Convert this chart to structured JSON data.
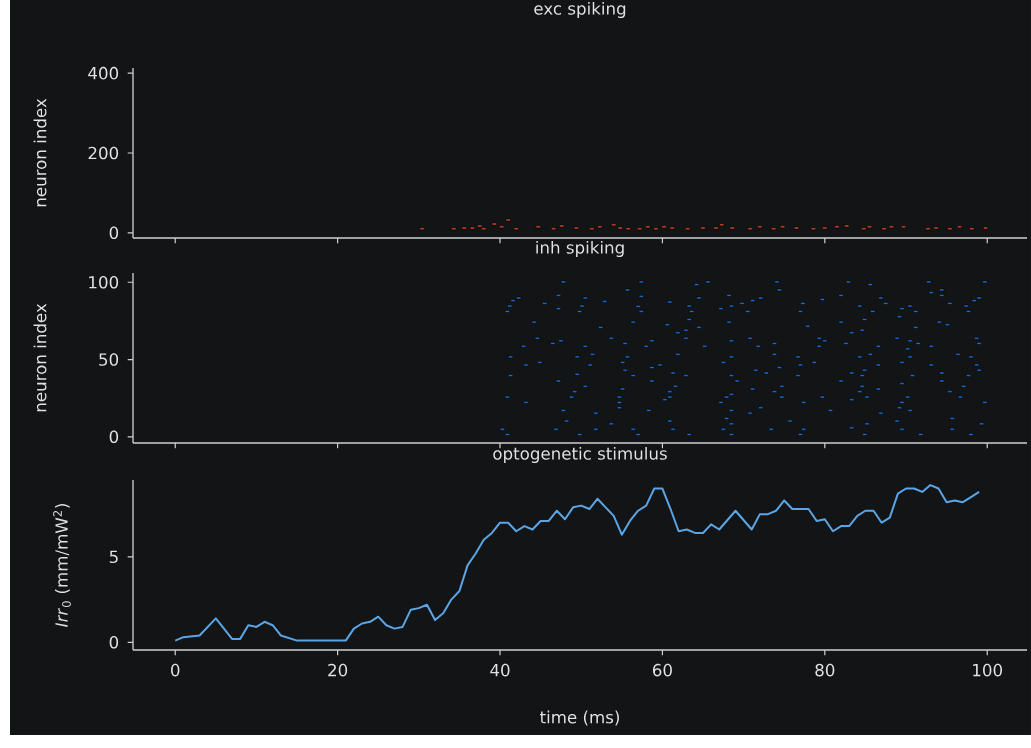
{
  "chart_data": [
    {
      "type": "scatter",
      "title": "exc spiking",
      "ylabel": "neuron index",
      "color": "#d9472b",
      "xlim": [
        -5.2,
        104.9
      ],
      "xticks": [
        0,
        20,
        40,
        60,
        80,
        100
      ],
      "ylim": [
        -13,
        413
      ],
      "yticks": [
        0,
        200,
        400
      ],
      "tick_labels": "y",
      "x": [
        30.4,
        34.3,
        35.6,
        36.6,
        37.5,
        38.0,
        39.3,
        40.2,
        41.0,
        42.0,
        44.7,
        46.6,
        47.6,
        49.4,
        51.3,
        52.3,
        54.0,
        54.8,
        55.8,
        57.2,
        58.2,
        59.2,
        60.2,
        61.2,
        63.1,
        65.0,
        66.6,
        67.3,
        68.6,
        70.8,
        72.0,
        73.7,
        74.8,
        76.5,
        78.6,
        80.0,
        81.5,
        82.7,
        84.8,
        85.5,
        87.3,
        88.2,
        89.7,
        92.7,
        93.7,
        95.4,
        96.6,
        98.1,
        99.8
      ],
      "values": [
        10,
        10,
        12,
        12,
        17,
        10,
        22,
        15,
        32,
        10,
        15,
        10,
        17,
        12,
        10,
        15,
        20,
        12,
        10,
        10,
        15,
        10,
        15,
        12,
        10,
        12,
        12,
        20,
        12,
        10,
        15,
        10,
        15,
        12,
        10,
        12,
        15,
        17,
        10,
        15,
        10,
        15,
        15,
        10,
        12,
        10,
        15,
        10,
        12
      ]
    },
    {
      "type": "scatter",
      "title": "inh spiking",
      "ylabel": "neuron index",
      "color": "#1f6fd6",
      "xlim": [
        -5.2,
        104.9
      ],
      "xticks": [
        0,
        20,
        40,
        60,
        80,
        100
      ],
      "ylim": [
        -4,
        106
      ],
      "yticks": [
        0,
        50,
        100
      ],
      "tick_labels": "y",
      "x": [
        47.8,
        57.4,
        65.6,
        64.2,
        55.7,
        47.2,
        57.4,
        68.2,
        42.3,
        50.5,
        64.5,
        41.6,
        45.5,
        52.9,
        60.9,
        41.2,
        50.1,
        47.2,
        57.0,
        63.3,
        68.5,
        67.2,
        40.9,
        49.8,
        57.4,
        63.6,
        44.2,
        56.4,
        63.3,
        68.2,
        52.4,
        60.6,
        64.5,
        62.9,
        61.9,
        44.6,
        53.7,
        62.9,
        47.5,
        58.7,
        68.5,
        46.5,
        55.4,
        42.9,
        50.5,
        58.0,
        65.2,
        51.4,
        41.3,
        49.5,
        55.7,
        61.9,
        68.5,
        44.9,
        55.1,
        43.2,
        51.1,
        59.7,
        67.5,
        58.7,
        55.4,
        41.3,
        49.5,
        56.4,
        61.3,
        62.9,
        68.5,
        47.2,
        58.7,
        69.2,
        50.5,
        55.1,
        61.6,
        49.2,
        60.9,
        40.9,
        48.8,
        54.7,
        60.9,
        67.9,
        43.2,
        54.7,
        60.3,
        67.2,
        68.5,
        54.7,
        47.8,
        58.3,
        68.5,
        51.8,
        48.2,
        60.9,
        67.9,
        53.7,
        68.5,
        40.3,
        46.9,
        51.8,
        56.4,
        61.3,
        67.5,
        40.9,
        49.8,
        57.0,
        63.3,
        68.5,
        74.1,
        82.9,
        92.8,
        99.7,
        85.6,
        74.4,
        93.1,
        94.4,
        82.0,
        94.4,
        71.1,
        72.1,
        79.7,
        86.9,
        98.4,
        99.0,
        69.8,
        77.3,
        87.5,
        95.4,
        84.3,
        89.5,
        90.5,
        97.4,
        70.5,
        77.0,
        85.9,
        91.2,
        97.7,
        89.2,
        84.9,
        82.0,
        94.1,
        95.1,
        77.9,
        91.2,
        84.6,
        83.3,
        70.8,
        79.3,
        88.9,
        98.7,
        80.0,
        90.5,
        73.8,
        82.6,
        91.5,
        71.8,
        79.3,
        86.6,
        93.1,
        99.0,
        90.2,
        73.8,
        85.6,
        96.4,
        76.7,
        84.3,
        90.5,
        98.0,
        78.7,
        89.5,
        77.0,
        86.6,
        93.1,
        98.7,
        71.5,
        74.4,
        84.9,
        99.0,
        72.8,
        83.3,
        94.4,
        76.7,
        84.6,
        90.8,
        97.7,
        82.0,
        94.4,
        89.5,
        74.7,
        84.6,
        97.1,
        71.1,
        86.6,
        73.8,
        84.3,
        95.4,
        74.7,
        79.7,
        85.2,
        90.2,
        96.7,
        77.4,
        83.3,
        89.5,
        99.7,
        72.1,
        89.2,
        80.7,
        90.5,
        70.8,
        86.9,
        75.7,
        88.9,
        95.7,
        85.2,
        99.3,
        73.4,
        77.4,
        83.3,
        89.5,
        95.7,
        77.0,
        84.9,
        91.8,
        98.0
      ],
      "values": [
        100.2,
        100.2,
        100.2,
        98.5,
        95.0,
        91.5,
        90.9,
        91.5,
        89.8,
        89.8,
        89.8,
        88.1,
        86.3,
        87.6,
        87.2,
        84.6,
        84.6,
        82.9,
        84.4,
        84.6,
        84.6,
        82.9,
        81.1,
        81.1,
        81.1,
        81.1,
        74.2,
        74.2,
        75.9,
        74.2,
        70.8,
        72.5,
        70.8,
        69.0,
        67.3,
        63.8,
        63.8,
        63.8,
        62.1,
        62.1,
        62.1,
        60.4,
        60.4,
        58.6,
        58.6,
        58.6,
        58.6,
        53.4,
        51.7,
        51.7,
        51.7,
        53.4,
        51.7,
        48.2,
        48.2,
        46.5,
        46.5,
        46.5,
        48.2,
        44.8,
        43.1,
        39.6,
        40.5,
        39.6,
        41.3,
        39.6,
        39.6,
        36.1,
        36.1,
        36.1,
        32.7,
        30.9,
        32.7,
        29.2,
        29.2,
        25.7,
        25.7,
        25.7,
        25.7,
        25.7,
        22.3,
        22.3,
        24.0,
        22.3,
        27.5,
        18.8,
        17.1,
        17.1,
        17.1,
        15.3,
        10.2,
        10.2,
        11.9,
        8.4,
        8.4,
        4.9,
        4.9,
        4.9,
        4.9,
        4.9,
        4.9,
        1.5,
        1.5,
        1.5,
        1.5,
        1.5,
        100.2,
        100.2,
        100.2,
        100.2,
        98.5,
        95.0,
        93.3,
        95.0,
        91.5,
        91.5,
        88.1,
        89.8,
        88.9,
        89.8,
        88.1,
        89.8,
        86.3,
        86.3,
        86.3,
        86.3,
        84.6,
        82.9,
        84.6,
        84.6,
        81.1,
        81.1,
        81.1,
        81.1,
        81.1,
        77.7,
        75.9,
        74.2,
        74.2,
        72.5,
        71.6,
        70.8,
        69.0,
        67.3,
        63.8,
        63.8,
        63.8,
        63.8,
        62.1,
        62.1,
        60.4,
        60.4,
        60.4,
        58.6,
        58.6,
        58.6,
        58.6,
        60.4,
        56.9,
        53.4,
        53.4,
        53.4,
        51.7,
        51.7,
        51.7,
        51.7,
        48.2,
        48.2,
        46.5,
        46.5,
        46.5,
        46.5,
        43.1,
        44.8,
        43.1,
        43.1,
        41.3,
        41.3,
        41.3,
        39.6,
        39.6,
        39.6,
        39.6,
        36.1,
        36.1,
        34.4,
        32.7,
        32.7,
        32.7,
        30.9,
        30.9,
        29.2,
        29.2,
        29.2,
        25.7,
        25.7,
        25.7,
        25.7,
        25.7,
        22.3,
        24.0,
        22.3,
        22.3,
        18.8,
        18.8,
        17.1,
        17.1,
        15.3,
        15.3,
        10.2,
        10.2,
        11.9,
        8.4,
        8.4,
        4.9,
        4.9,
        5.8,
        4.9,
        4.9,
        1.5,
        1.5,
        1.5,
        1.5
      ]
    },
    {
      "type": "line",
      "title": "optogenetic stimulus",
      "xlabel": "time (ms)",
      "ylabel": "*Irr*$_{0}$ (mm/mW$^{2}$)",
      "color": "#5aa5e6",
      "xlim": [
        -5.2,
        104.9
      ],
      "xticks": [
        0,
        20,
        40,
        60,
        80,
        100
      ],
      "ylim": [
        -0.45,
        9.5
      ],
      "yticks": [
        0,
        5
      ],
      "x": [
        0,
        1,
        3,
        5,
        6,
        7,
        8,
        9,
        10,
        11,
        12,
        13,
        15,
        21,
        22,
        23,
        24,
        25,
        26,
        27,
        28,
        29,
        30,
        31,
        32,
        33,
        34,
        35,
        36,
        37,
        38,
        39,
        40,
        41,
        42,
        43,
        44,
        45,
        46,
        47,
        48,
        49,
        50,
        51,
        52,
        53,
        54,
        55,
        56,
        57,
        58,
        59,
        60,
        61,
        62,
        63,
        64,
        65,
        66,
        67,
        69,
        71,
        72,
        73,
        74,
        75,
        76,
        78,
        79,
        80,
        81,
        82,
        83,
        84,
        85,
        86,
        87,
        88,
        89,
        90,
        91,
        92,
        93,
        94,
        95,
        96,
        97,
        98,
        99
      ],
      "values": [
        0.1,
        0.3,
        0.4,
        1.4,
        0.8,
        0.2,
        0.2,
        1.0,
        0.9,
        1.2,
        1.0,
        0.4,
        0.1,
        0.1,
        0.8,
        1.1,
        1.2,
        1.5,
        1.0,
        0.8,
        0.9,
        1.9,
        2.0,
        2.2,
        1.3,
        1.7,
        2.5,
        3.0,
        4.5,
        5.2,
        6.0,
        6.4,
        7.0,
        7.0,
        6.5,
        6.8,
        6.6,
        7.1,
        7.1,
        7.7,
        7.2,
        7.9,
        8.0,
        7.8,
        8.4,
        7.9,
        7.4,
        6.3,
        7.1,
        7.7,
        8.0,
        9.0,
        9.0,
        7.8,
        6.5,
        6.6,
        6.4,
        6.4,
        6.9,
        6.6,
        7.7,
        6.6,
        7.5,
        7.5,
        7.7,
        8.3,
        7.8,
        7.8,
        7.1,
        7.2,
        6.5,
        6.8,
        6.8,
        7.4,
        7.7,
        7.7,
        7.0,
        7.3,
        8.7,
        9.0,
        9.0,
        8.8,
        9.2,
        9.0,
        8.2,
        8.3,
        8.2,
        8.5,
        8.8
      ]
    }
  ]
}
